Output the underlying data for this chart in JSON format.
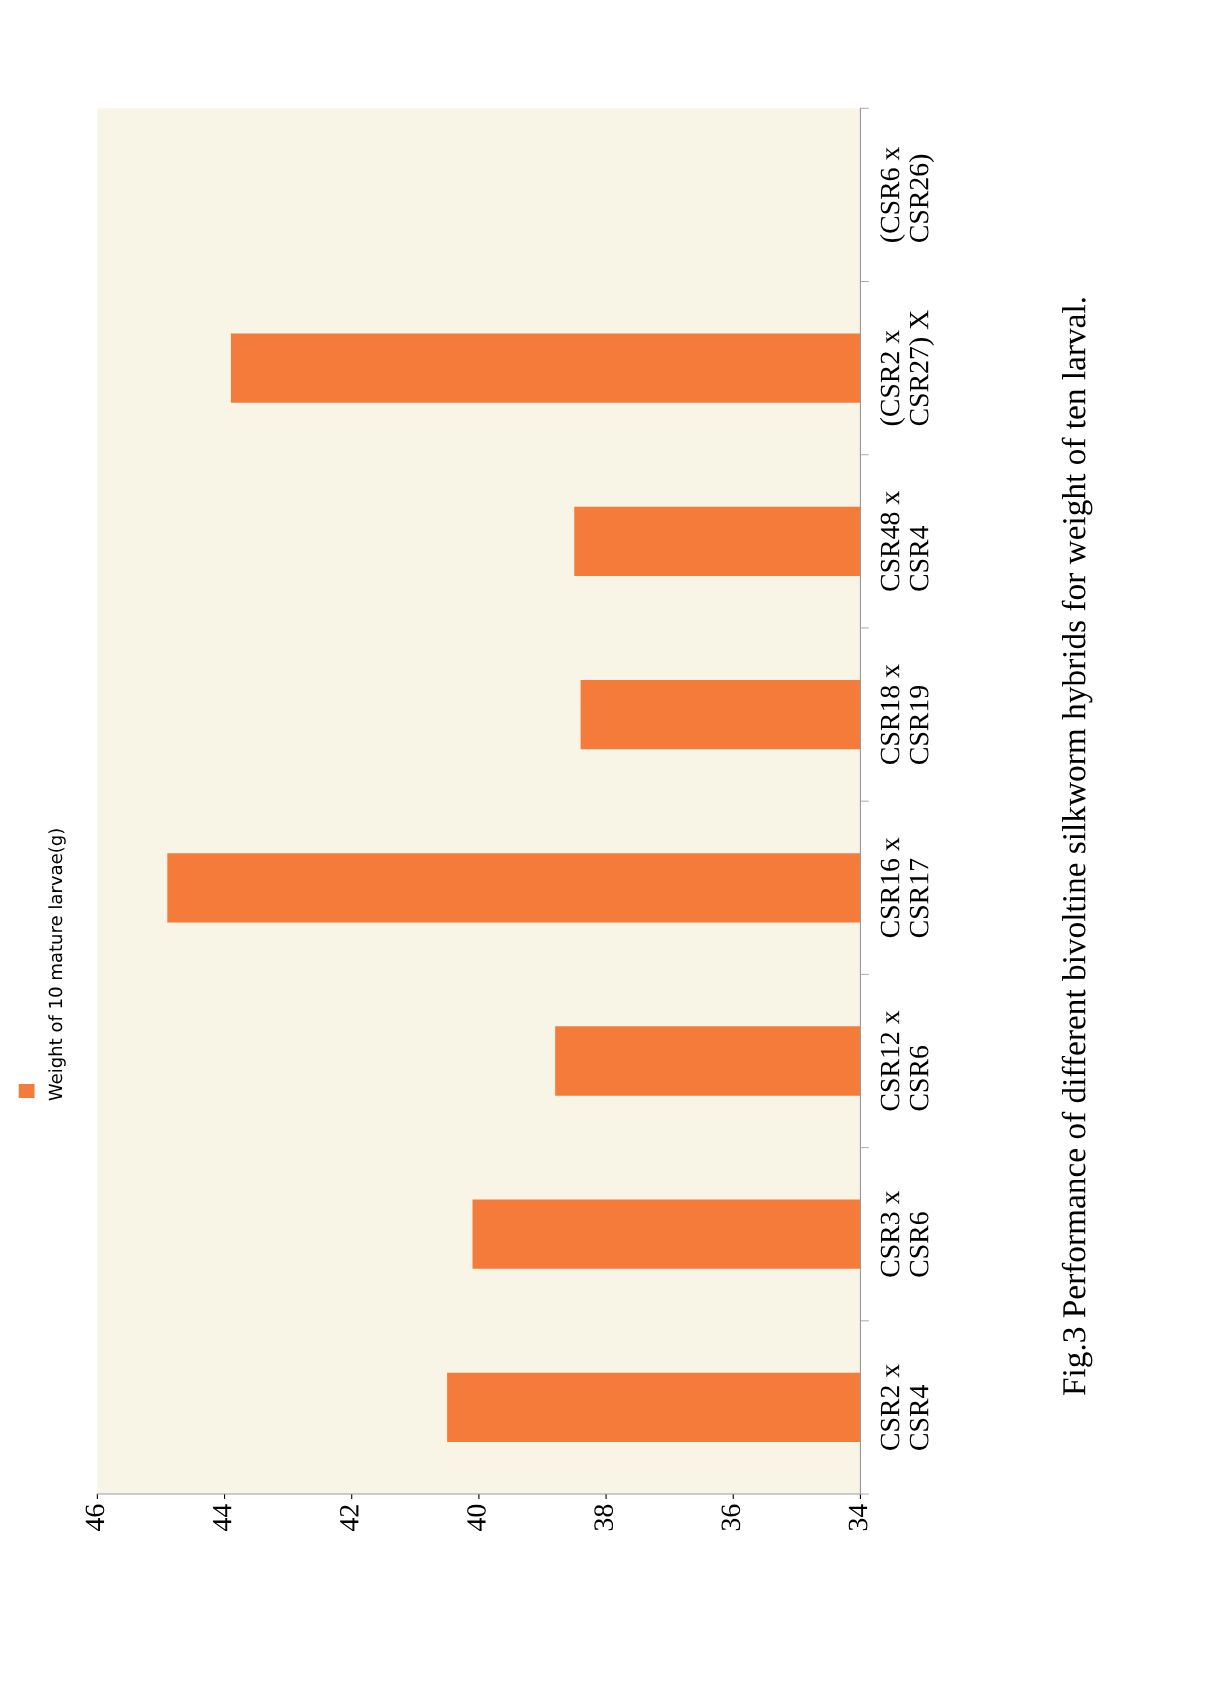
{
  "chart_data": {
    "type": "bar",
    "orientation": "horizontal",
    "title": "Fig.3 Performance of different bivoltine silkworm hybrids for weight of ten larval.",
    "categories": [
      "(CSR6 x\nCSR26)",
      "(CSR2 x\nCSR27) X",
      "CSR48 x\nCSR4",
      "CSR18 x\nCSR19",
      "CSR16 x\nCSR17",
      "CSR12 x\nCSR6",
      "CSR3 x\nCSR6",
      "CSR2 x\nCSR4"
    ],
    "series": [
      {
        "name": "Weight of 10 mature larvae(g)",
        "color": "#f47b3a",
        "values": [
          null,
          43.9,
          38.5,
          38.4,
          44.9,
          38.8,
          40.1,
          40.5
        ]
      }
    ],
    "xlim": [
      46,
      34
    ],
    "xticks": [
      46,
      44,
      42,
      40,
      38,
      36,
      34
    ],
    "grid": false,
    "legend": "left"
  }
}
